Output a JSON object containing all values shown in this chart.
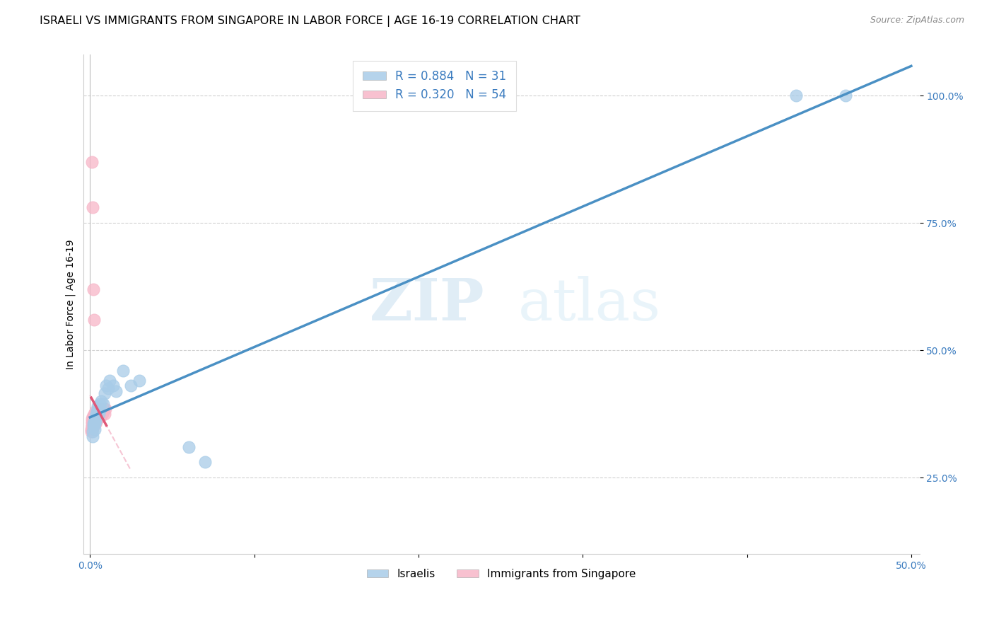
{
  "title": "ISRAELI VS IMMIGRANTS FROM SINGAPORE IN LABOR FORCE | AGE 16-19 CORRELATION CHART",
  "source": "Source: ZipAtlas.com",
  "ylabel": "In Labor Force | Age 16-19",
  "xlim": [
    -0.004,
    0.505
  ],
  "ylim": [
    0.1,
    1.08
  ],
  "ytick_labels": [
    "25.0%",
    "50.0%",
    "75.0%",
    "100.0%"
  ],
  "ytick_vals": [
    0.25,
    0.5,
    0.75,
    1.0
  ],
  "xtick_vals": [
    0.0,
    0.1,
    0.2,
    0.3,
    0.4,
    0.5
  ],
  "xtick_labels": [
    "0.0%",
    "",
    "",
    "",
    "",
    "50.0%"
  ],
  "watermark_zip": "ZIP",
  "watermark_atlas": "atlas",
  "israelis_x": [
    0.0015,
    0.0018,
    0.002,
    0.0022,
    0.0025,
    0.0028,
    0.003,
    0.0032,
    0.0035,
    0.0038,
    0.004,
    0.0045,
    0.005,
    0.0055,
    0.006,
    0.0065,
    0.007,
    0.008,
    0.009,
    0.01,
    0.011,
    0.012,
    0.014,
    0.016,
    0.02,
    0.025,
    0.03,
    0.06,
    0.07,
    0.43,
    0.46
  ],
  "israelis_y": [
    0.33,
    0.34,
    0.35,
    0.355,
    0.36,
    0.345,
    0.355,
    0.37,
    0.36,
    0.375,
    0.38,
    0.39,
    0.385,
    0.375,
    0.395,
    0.385,
    0.4,
    0.395,
    0.415,
    0.43,
    0.425,
    0.44,
    0.43,
    0.42,
    0.46,
    0.43,
    0.44,
    0.31,
    0.28,
    1.0,
    1.0
  ],
  "singapore_x": [
    0.0008,
    0.0009,
    0.001,
    0.001,
    0.0011,
    0.0012,
    0.0013,
    0.0014,
    0.0015,
    0.0015,
    0.0016,
    0.0017,
    0.0018,
    0.0019,
    0.002,
    0.002,
    0.0021,
    0.0022,
    0.0023,
    0.0024,
    0.0025,
    0.0026,
    0.0027,
    0.0028,
    0.0029,
    0.003,
    0.0031,
    0.0032,
    0.0033,
    0.0034,
    0.0035,
    0.0036,
    0.0037,
    0.0038,
    0.0039,
    0.004,
    0.0042,
    0.0044,
    0.0046,
    0.0048,
    0.005,
    0.0055,
    0.006,
    0.0065,
    0.007,
    0.0075,
    0.008,
    0.0085,
    0.009,
    0.0095,
    0.001,
    0.0015,
    0.002,
    0.0025
  ],
  "singapore_y": [
    0.34,
    0.345,
    0.35,
    0.36,
    0.355,
    0.365,
    0.345,
    0.35,
    0.36,
    0.37,
    0.355,
    0.365,
    0.36,
    0.35,
    0.37,
    0.355,
    0.36,
    0.365,
    0.375,
    0.36,
    0.37,
    0.365,
    0.355,
    0.375,
    0.36,
    0.37,
    0.365,
    0.355,
    0.37,
    0.36,
    0.38,
    0.365,
    0.37,
    0.36,
    0.375,
    0.38,
    0.37,
    0.375,
    0.365,
    0.38,
    0.385,
    0.375,
    0.38,
    0.37,
    0.385,
    0.375,
    0.38,
    0.385,
    0.375,
    0.385,
    0.87,
    0.78,
    0.62,
    0.56
  ],
  "israeli_R": 0.884,
  "israeli_N": 31,
  "singapore_R": 0.32,
  "singapore_N": 54,
  "israeli_color": "#a8cce8",
  "singapore_color": "#f7b6c8",
  "israeli_line_color": "#4a90c4",
  "singapore_line_color": "#e05878",
  "singapore_dashed_color": "#f0a0b8",
  "title_fontsize": 11.5,
  "axis_label_fontsize": 10,
  "tick_fontsize": 10,
  "legend_fontsize": 12,
  "source_fontsize": 9
}
